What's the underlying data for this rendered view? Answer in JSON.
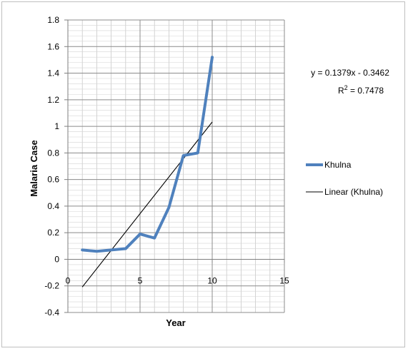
{
  "chart_data": {
    "type": "line",
    "xlabel": "Year",
    "ylabel": "Malaria Case",
    "xlim": [
      0,
      15
    ],
    "ylim": [
      -0.4,
      1.8
    ],
    "x_ticks": [
      "0",
      "5",
      "10",
      "15"
    ],
    "x_tick_values": [
      0,
      5,
      10,
      15
    ],
    "y_ticks": [
      "1.8",
      "1.6",
      "1.4",
      "1.2",
      "1",
      "0.8",
      "0.6",
      "0.4",
      "0.2",
      "0",
      "-0.2",
      "-0.4"
    ],
    "y_tick_values": [
      1.8,
      1.6,
      1.4,
      1.2,
      1.0,
      0.8,
      0.6,
      0.4,
      0.2,
      0.0,
      -0.2,
      -0.4
    ],
    "grid": true,
    "legend_position": "right",
    "series": [
      {
        "name": "Khulna",
        "color": "#4f81bd",
        "x": [
          1,
          2,
          3,
          4,
          5,
          6,
          7,
          8,
          9,
          10
        ],
        "values": [
          0.07,
          0.06,
          0.07,
          0.08,
          0.19,
          0.16,
          0.39,
          0.78,
          0.8,
          1.52
        ]
      },
      {
        "name": "Linear (Khulna)",
        "color": "#000000",
        "x": [
          1,
          10
        ],
        "values": [
          -0.2083,
          1.0328
        ]
      }
    ],
    "annotations": {
      "equation": "y = 0.1379x - 0.3462",
      "r_squared_prefix": "R",
      "r_squared_sup": "2",
      "r_squared_suffix": " = 0.7478"
    }
  }
}
